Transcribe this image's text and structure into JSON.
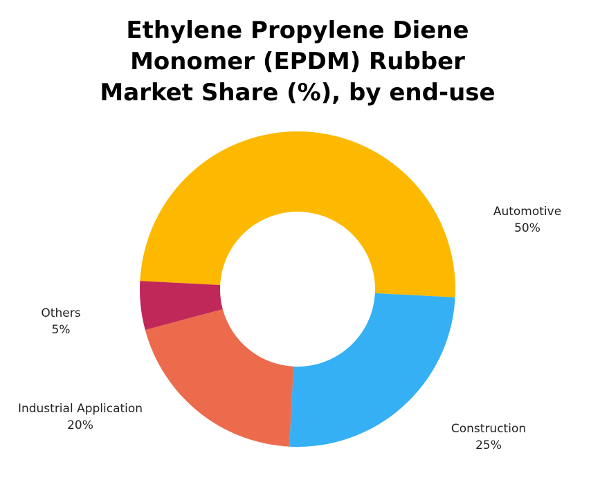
{
  "chart_data": {
    "type": "donut",
    "title": "Ethylene Propylene Diene Monomer (EPDM) Rubber Market Share (%), by end-use",
    "categories": [
      "Automotive",
      "Construction",
      "Industrial Application",
      "Others"
    ],
    "values": [
      50,
      25,
      20,
      5
    ],
    "value_labels": [
      "50%",
      "25%",
      "20%",
      "5%"
    ],
    "colors": [
      "#FDB900",
      "#35B0F5",
      "#EC6B4D",
      "#C0285A"
    ]
  }
}
